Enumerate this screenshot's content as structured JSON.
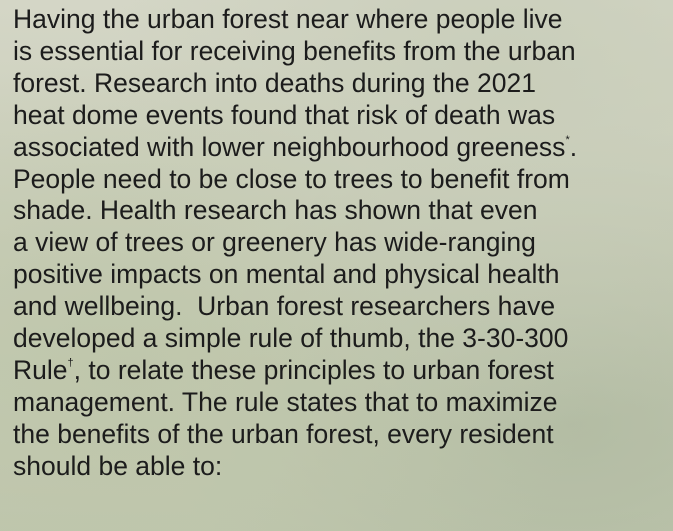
{
  "paragraph": {
    "lines": [
      [
        {
          "t": "Having the urban forest near where people live"
        }
      ],
      [
        {
          "t": "is essential for receiving benefits from the urban"
        }
      ],
      [
        {
          "t": "forest. Research into deaths during the 2021"
        }
      ],
      [
        {
          "t": "heat dome events found that risk of death was"
        }
      ],
      [
        {
          "t": "associated with lower neighbourhood greeness"
        },
        {
          "t": "*",
          "sup": true
        },
        {
          "t": "."
        }
      ],
      [
        {
          "t": "People need to be close to trees to benefit from"
        }
      ],
      [
        {
          "t": "shade. Health research has shown that even"
        }
      ],
      [
        {
          "t": "a view of trees or greenery has wide-ranging"
        }
      ],
      [
        {
          "t": "positive impacts on mental and physical health"
        }
      ],
      [
        {
          "t": "and wellbeing.  Urban forest researchers have"
        }
      ],
      [
        {
          "t": "developed a simple rule of thumb, the 3-30-300"
        }
      ],
      [
        {
          "t": "Rule"
        },
        {
          "t": "†",
          "sup": true
        },
        {
          "t": ", to relate these principles to urban forest"
        }
      ],
      [
        {
          "t": "management. The rule states that to maximize"
        }
      ],
      [
        {
          "t": "the benefits of the urban forest, every resident"
        }
      ],
      [
        {
          "t": "should be able to:"
        }
      ]
    ]
  }
}
